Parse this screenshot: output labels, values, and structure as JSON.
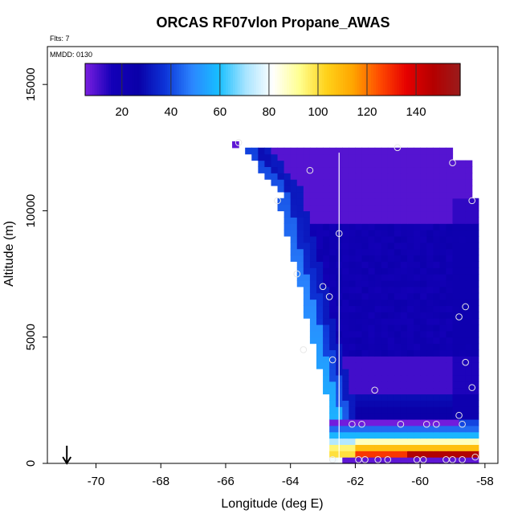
{
  "chart_data": {
    "type": "heatmap",
    "title": "ORCAS RF07vlon Propane_AWAS",
    "flights_note": "Flts: 7",
    "date_note": "MMDD: 0130",
    "xlabel": "Longitude (deg E)",
    "ylabel": "Altitude (m)",
    "xlim": [
      -71.5,
      -57.6
    ],
    "ylim": [
      0,
      16500
    ],
    "x_ticks": [
      -70,
      -68,
      -66,
      -64,
      -62,
      -60,
      -58
    ],
    "y_ticks": [
      0,
      5000,
      10000,
      15000
    ],
    "colorbar": {
      "range": [
        5,
        158
      ],
      "ticks": [
        20,
        40,
        60,
        80,
        100,
        120,
        140
      ],
      "stops": [
        "#7b1fe0",
        "#1400b8",
        "#0a00a8",
        "#0d35d8",
        "#2b86ff",
        "#17bfff",
        "#a8e4ff",
        "#ffffff",
        "#ffff90",
        "#ffd21a",
        "#ffa500",
        "#ff4a00",
        "#e60000",
        "#b40000",
        "#9a1c1c"
      ]
    },
    "grid": false,
    "vertical_line_x": -62.5,
    "arrow_x": -70.9,
    "samples": [
      {
        "lon": -65.6,
        "alt": 12700
      },
      {
        "lon": -63.4,
        "alt": 11600
      },
      {
        "lon": -60.7,
        "alt": 12500
      },
      {
        "lon": -59.0,
        "alt": 11900
      },
      {
        "lon": -64.4,
        "alt": 10400
      },
      {
        "lon": -58.4,
        "alt": 10400
      },
      {
        "lon": -62.5,
        "alt": 9100
      },
      {
        "lon": -63.8,
        "alt": 7500
      },
      {
        "lon": -63.0,
        "alt": 7000
      },
      {
        "lon": -62.8,
        "alt": 6600
      },
      {
        "lon": -58.6,
        "alt": 6200
      },
      {
        "lon": -58.8,
        "alt": 5800
      },
      {
        "lon": -63.6,
        "alt": 4500
      },
      {
        "lon": -62.7,
        "alt": 4100
      },
      {
        "lon": -58.6,
        "alt": 4000
      },
      {
        "lon": -61.4,
        "alt": 2900
      },
      {
        "lon": -58.4,
        "alt": 3000
      },
      {
        "lon": -58.8,
        "alt": 1900
      },
      {
        "lon": -62.1,
        "alt": 1550
      },
      {
        "lon": -61.8,
        "alt": 1550
      },
      {
        "lon": -60.6,
        "alt": 1550
      },
      {
        "lon": -59.8,
        "alt": 1550
      },
      {
        "lon": -59.5,
        "alt": 1550
      },
      {
        "lon": -58.7,
        "alt": 1550
      },
      {
        "lon": -62.7,
        "alt": 150
      },
      {
        "lon": -61.9,
        "alt": 150
      },
      {
        "lon": -61.7,
        "alt": 150
      },
      {
        "lon": -61.3,
        "alt": 150
      },
      {
        "lon": -61.0,
        "alt": 150
      },
      {
        "lon": -60.1,
        "alt": 150
      },
      {
        "lon": -59.9,
        "alt": 150
      },
      {
        "lon": -59.2,
        "alt": 150
      },
      {
        "lon": -59.0,
        "alt": 150
      },
      {
        "lon": -58.7,
        "alt": 150
      },
      {
        "lon": -58.3,
        "alt": 250
      }
    ]
  }
}
